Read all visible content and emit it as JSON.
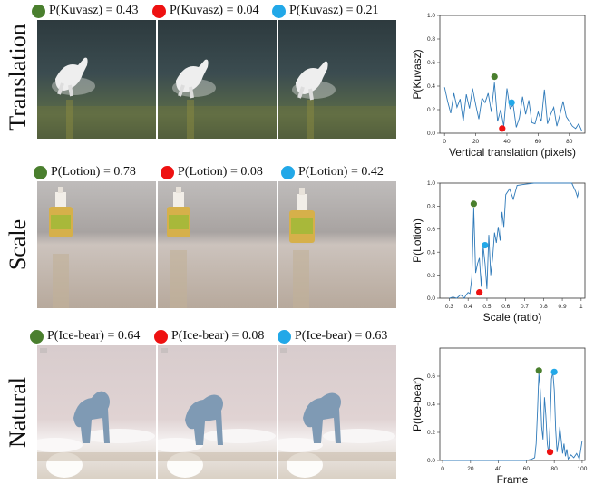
{
  "colors": {
    "green": "#4a7f2e",
    "red": "#ee1111",
    "cyan": "#22a8e8",
    "line": "#2f7ab9"
  },
  "rows": [
    {
      "label": "Translation",
      "captions": [
        "P(Kuvasz) = 0.43",
        "P(Kuvasz) = 0.04",
        "P(Kuvasz) = 0.21"
      ],
      "scene": "dog-water"
    },
    {
      "label": "Scale",
      "captions": [
        "P(Lotion) = 0.78",
        "P(Lotion) = 0.08",
        "P(Lotion) = 0.42"
      ],
      "scene": "lotion-bottle"
    },
    {
      "label": "Natural",
      "captions": [
        "P(Ice-bear) = 0.64",
        "P(Ice-bear) = 0.08",
        "P(Ice-bear) = 0.63"
      ],
      "scene": "polar-bear"
    }
  ],
  "chart_data": [
    {
      "type": "line",
      "xlabel": "Vertical translation (pixels)",
      "ylabel": "P(Kuvasz)",
      "xlim": [
        -3,
        90
      ],
      "ylim": [
        0,
        1
      ],
      "xticks": [
        0,
        20,
        40,
        60,
        80
      ],
      "yticks": [
        0.0,
        0.2,
        0.4,
        0.6,
        0.8,
        1.0
      ],
      "x": [
        0,
        2,
        4,
        6,
        8,
        10,
        12,
        14,
        16,
        18,
        20,
        22,
        24,
        26,
        28,
        30,
        32,
        34,
        36,
        38,
        40,
        42,
        44,
        46,
        48,
        50,
        52,
        54,
        56,
        58,
        60,
        62,
        64,
        66,
        68,
        70,
        72,
        74,
        76,
        78,
        80,
        82,
        84,
        86,
        88
      ],
      "values": [
        0.39,
        0.27,
        0.17,
        0.34,
        0.22,
        0.29,
        0.1,
        0.33,
        0.21,
        0.38,
        0.24,
        0.12,
        0.3,
        0.26,
        0.34,
        0.18,
        0.43,
        0.1,
        0.2,
        0.06,
        0.38,
        0.21,
        0.24,
        0.05,
        0.13,
        0.31,
        0.16,
        0.28,
        0.09,
        0.08,
        0.18,
        0.1,
        0.37,
        0.08,
        0.16,
        0.22,
        0.06,
        0.16,
        0.27,
        0.14,
        0.1,
        0.06,
        0.04,
        0.08,
        0.02
      ],
      "markers": [
        {
          "x": 32,
          "y": 0.48,
          "color": "green"
        },
        {
          "x": 37,
          "y": 0.04,
          "color": "red"
        },
        {
          "x": 43,
          "y": 0.26,
          "color": "cyan"
        }
      ]
    },
    {
      "type": "line",
      "xlabel": "Scale (ratio)",
      "ylabel": "P(Lotion)",
      "xlim": [
        0.25,
        1.02
      ],
      "ylim": [
        0,
        1
      ],
      "xticks": [
        0.3,
        0.4,
        0.5,
        0.6,
        0.7,
        0.8,
        0.9,
        1.0
      ],
      "yticks": [
        0.0,
        0.2,
        0.4,
        0.6,
        0.8,
        1.0
      ],
      "x": [
        0.3,
        0.32,
        0.34,
        0.36,
        0.38,
        0.39,
        0.4,
        0.41,
        0.42,
        0.43,
        0.44,
        0.45,
        0.46,
        0.47,
        0.48,
        0.49,
        0.5,
        0.51,
        0.52,
        0.53,
        0.54,
        0.55,
        0.56,
        0.57,
        0.58,
        0.59,
        0.6,
        0.62,
        0.64,
        0.66,
        0.7,
        0.75,
        0.8,
        0.85,
        0.9,
        0.95,
        0.97,
        0.98,
        0.99
      ],
      "values": [
        0.0,
        0.01,
        0.0,
        0.03,
        0.0,
        0.03,
        0.05,
        0.04,
        0.18,
        0.78,
        0.22,
        0.3,
        0.35,
        0.1,
        0.45,
        0.3,
        0.08,
        0.55,
        0.2,
        0.35,
        0.57,
        0.48,
        0.62,
        0.5,
        0.75,
        0.62,
        0.9,
        0.95,
        0.86,
        0.98,
        0.99,
        1.0,
        1.0,
        1.0,
        1.0,
        1.0,
        0.93,
        0.88,
        0.95
      ],
      "markers": [
        {
          "x": 0.43,
          "y": 0.82,
          "color": "green"
        },
        {
          "x": 0.46,
          "y": 0.05,
          "color": "red"
        },
        {
          "x": 0.49,
          "y": 0.46,
          "color": "cyan"
        }
      ]
    },
    {
      "type": "line",
      "xlabel": "Frame",
      "ylabel": "P(Ice-bear)",
      "xlim": [
        -2,
        102
      ],
      "ylim": [
        0,
        0.8
      ],
      "xticks": [
        0,
        20,
        40,
        60,
        80,
        100
      ],
      "yticks": [
        0.0,
        0.2,
        0.4,
        0.6
      ],
      "x": [
        0,
        10,
        20,
        30,
        40,
        50,
        60,
        64,
        66,
        67,
        68,
        69,
        70,
        71,
        72,
        73,
        74,
        75,
        76,
        77,
        78,
        79,
        80,
        81,
        82,
        83,
        84,
        85,
        86,
        87,
        88,
        89,
        90,
        92,
        94,
        96,
        98,
        100
      ],
      "values": [
        0.0,
        0.0,
        0.0,
        0.0,
        0.0,
        0.0,
        0.0,
        0.01,
        0.02,
        0.12,
        0.35,
        0.62,
        0.5,
        0.24,
        0.15,
        0.45,
        0.32,
        0.12,
        0.05,
        0.25,
        0.58,
        0.63,
        0.5,
        0.22,
        0.06,
        0.13,
        0.24,
        0.15,
        0.05,
        0.12,
        0.03,
        0.08,
        0.01,
        0.04,
        0.02,
        0.05,
        0.01,
        0.14
      ],
      "markers": [
        {
          "x": 69,
          "y": 0.64,
          "color": "green"
        },
        {
          "x": 77,
          "y": 0.06,
          "color": "red"
        },
        {
          "x": 80,
          "y": 0.63,
          "color": "cyan"
        }
      ]
    }
  ]
}
